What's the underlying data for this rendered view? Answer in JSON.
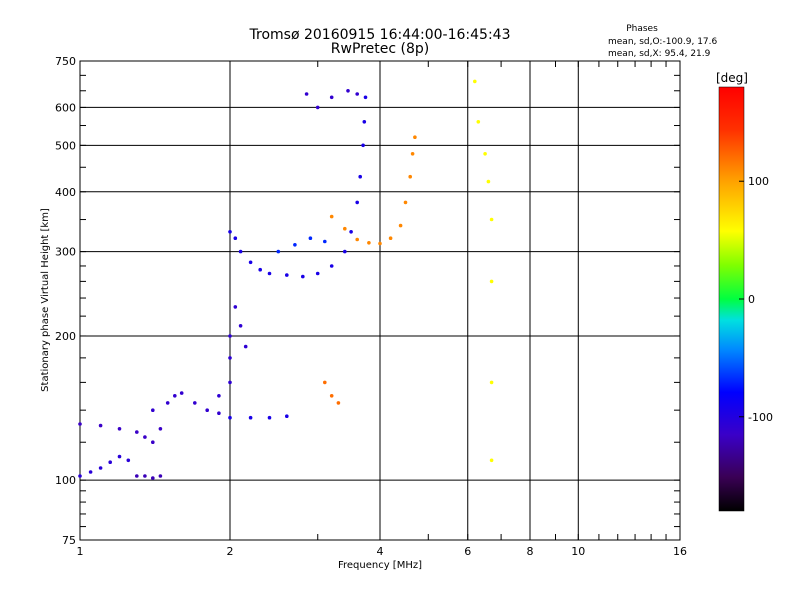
{
  "header": {
    "title": "Tromsø 20160915 16:44:00-16:45:43",
    "subtitle": "RwPretec (8p)",
    "phases_label": "Phases",
    "phases_o": "mean, sd,O:-100.9, 17.6",
    "phases_x": "mean, sd,X:  95.4, 21.9"
  },
  "colorbar": {
    "unit_label": "[deg]",
    "ticks": [
      {
        "value": 100,
        "label": "100"
      },
      {
        "value": 0,
        "label": "0"
      },
      {
        "value": -100,
        "label": "-100"
      }
    ],
    "range": [
      -180,
      180
    ]
  },
  "chart_data": {
    "type": "scatter",
    "title": "Tromsø 20160915 16:44:00-16:45:43",
    "subtitle": "RwPretec (8p)",
    "xlabel": "Frequency [MHz]",
    "ylabel": "Stationary phase Virtual Height [km]",
    "xscale": "log",
    "yscale": "log",
    "xlim": [
      1,
      16
    ],
    "ylim": [
      75,
      750
    ],
    "xticks": [
      1,
      2,
      4,
      6,
      8,
      10,
      16
    ],
    "xtick_labels": [
      "1",
      "2",
      "4",
      "6",
      "8",
      "10",
      "16"
    ],
    "yticks": [
      75,
      100,
      200,
      300,
      400,
      500,
      600,
      750
    ],
    "ytick_labels": [
      "75",
      "100",
      "200",
      "300",
      "400",
      "500",
      "600",
      "750"
    ],
    "grid": true,
    "color_by": "phase [deg]",
    "series": [
      {
        "values": [
          [
            1.0,
            131
          ],
          [
            1.1,
            130
          ],
          [
            1.2,
            128
          ],
          [
            1.3,
            126
          ],
          [
            1.35,
            123
          ],
          [
            1.4,
            120
          ],
          [
            1.45,
            128
          ]
        ],
        "phase": -115
      },
      {
        "values": [
          [
            1.0,
            102
          ],
          [
            1.05,
            104
          ],
          [
            1.1,
            106
          ],
          [
            1.15,
            109
          ],
          [
            1.2,
            112
          ],
          [
            1.25,
            110
          ]
        ],
        "phase": -105
      },
      {
        "values": [
          [
            1.3,
            102
          ],
          [
            1.35,
            102
          ],
          [
            1.4,
            101
          ],
          [
            1.45,
            102
          ]
        ],
        "phase": -120
      },
      {
        "values": [
          [
            1.4,
            140
          ],
          [
            1.5,
            145
          ],
          [
            1.55,
            150
          ],
          [
            1.6,
            152
          ],
          [
            1.7,
            145
          ],
          [
            1.8,
            140
          ],
          [
            1.9,
            138
          ]
        ],
        "phase": -110
      },
      {
        "values": [
          [
            1.9,
            150
          ],
          [
            2.0,
            160
          ],
          [
            2.0,
            180
          ],
          [
            2.0,
            200
          ],
          [
            2.05,
            230
          ],
          [
            2.1,
            210
          ],
          [
            2.15,
            190
          ]
        ],
        "phase": -108
      },
      {
        "values": [
          [
            2.0,
            135
          ],
          [
            2.2,
            135
          ],
          [
            2.4,
            135
          ],
          [
            2.6,
            136
          ]
        ],
        "phase": -95
      },
      {
        "values": [
          [
            2.0,
            330
          ],
          [
            2.05,
            320
          ],
          [
            2.1,
            300
          ],
          [
            2.2,
            285
          ],
          [
            2.3,
            275
          ],
          [
            2.4,
            270
          ],
          [
            2.6,
            268
          ],
          [
            2.8,
            266
          ],
          [
            3.0,
            270
          ],
          [
            3.2,
            280
          ],
          [
            3.4,
            300
          ],
          [
            3.5,
            330
          ],
          [
            3.6,
            380
          ],
          [
            3.65,
            430
          ],
          [
            3.7,
            500
          ],
          [
            3.72,
            560
          ],
          [
            3.74,
            630
          ]
        ],
        "phase": -95
      },
      {
        "values": [
          [
            2.5,
            300
          ],
          [
            2.7,
            310
          ],
          [
            2.9,
            320
          ],
          [
            3.1,
            315
          ]
        ],
        "phase": -70
      },
      {
        "values": [
          [
            3.2,
            355
          ],
          [
            3.4,
            335
          ],
          [
            3.6,
            318
          ],
          [
            3.8,
            313
          ],
          [
            4.0,
            312
          ],
          [
            4.2,
            320
          ],
          [
            4.4,
            340
          ],
          [
            4.5,
            380
          ],
          [
            4.6,
            430
          ],
          [
            4.65,
            480
          ],
          [
            4.7,
            520
          ]
        ],
        "phase": 110
      },
      {
        "values": [
          [
            3.1,
            160
          ],
          [
            3.2,
            150
          ],
          [
            3.3,
            145
          ]
        ],
        "phase": 120
      },
      {
        "values": [
          [
            2.85,
            640
          ],
          [
            3.0,
            600
          ],
          [
            3.2,
            630
          ],
          [
            3.45,
            650
          ],
          [
            3.6,
            640
          ]
        ],
        "phase": -110
      },
      {
        "values": [
          [
            6.2,
            680
          ],
          [
            6.3,
            560
          ],
          [
            6.5,
            480
          ],
          [
            6.6,
            420
          ],
          [
            6.7,
            350
          ],
          [
            6.7,
            260
          ],
          [
            6.7,
            160
          ],
          [
            6.7,
            110
          ]
        ],
        "phase": 60
      }
    ]
  }
}
